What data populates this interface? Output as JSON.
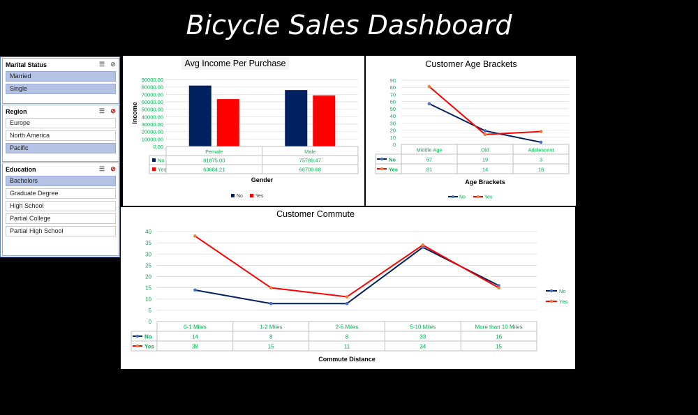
{
  "title": "Bicycle Sales Dashboard",
  "colors": {
    "no": "#002060",
    "yes": "#ff0000",
    "yes_marker": "#ed7d31",
    "no_marker": "#4472c4",
    "value_text": "#00b050"
  },
  "slicers": [
    {
      "title": "Marital Status",
      "items": [
        {
          "label": "Married",
          "selected": true
        },
        {
          "label": "Single",
          "selected": true
        }
      ]
    },
    {
      "title": "Region",
      "items": [
        {
          "label": "Europe",
          "selected": false
        },
        {
          "label": "North America",
          "selected": false
        },
        {
          "label": "Pacific",
          "selected": true
        }
      ]
    },
    {
      "title": "Education",
      "items": [
        {
          "label": "Bachelors",
          "selected": true
        },
        {
          "label": "Graduate Degree",
          "selected": false
        },
        {
          "label": "High School",
          "selected": false
        },
        {
          "label": "Partial College",
          "selected": false
        },
        {
          "label": "Partial High School",
          "selected": false
        }
      ]
    }
  ],
  "chart_data": [
    {
      "type": "bar",
      "title": "Avg Income Per Purchase",
      "xlabel": "Gender",
      "ylabel": "Income",
      "categories": [
        "Female",
        "Male"
      ],
      "series": [
        {
          "name": "No",
          "values": [
            81875.0,
            75789.47
          ],
          "labels": [
            "81875.00",
            "75789.47"
          ]
        },
        {
          "name": "Yes",
          "values": [
            63684.21,
            68709.68
          ],
          "labels": [
            "63684.21",
            "68709.68"
          ]
        }
      ],
      "ylim": [
        0,
        90000
      ],
      "yticks": [
        "0.00",
        "10000.00",
        "20000.00",
        "30000.00",
        "40000.00",
        "50000.00",
        "60000.00",
        "70000.00",
        "80000.00",
        "90000.00"
      ],
      "legend": "bottom"
    },
    {
      "type": "line",
      "title": "Customer Age Brackets",
      "xlabel": "Age Brackets",
      "categories": [
        "Middle Age",
        "Old",
        "Adolescent"
      ],
      "series": [
        {
          "name": "No",
          "values": [
            57,
            19,
            3
          ]
        },
        {
          "name": "Yes",
          "values": [
            81,
            14,
            18
          ]
        }
      ],
      "ylim": [
        0,
        90
      ],
      "yticks": [
        "0",
        "10",
        "20",
        "30",
        "40",
        "50",
        "60",
        "70",
        "80",
        "90"
      ],
      "legend": "bottom"
    },
    {
      "type": "line",
      "title": "Customer Commute",
      "xlabel": "Commute Distance",
      "categories": [
        "0-1 Miles",
        "1-2 Miles",
        "2-5 Miles",
        "5-10 Miles",
        "More than 10 Miles"
      ],
      "series": [
        {
          "name": "No",
          "values": [
            14,
            8,
            8,
            33,
            16
          ]
        },
        {
          "name": "Yes",
          "values": [
            38,
            15,
            11,
            34,
            15
          ]
        }
      ],
      "ylim": [
        0,
        40
      ],
      "yticks": [
        "0",
        "5",
        "10",
        "15",
        "20",
        "25",
        "30",
        "35",
        "40"
      ],
      "legend": "right"
    }
  ]
}
